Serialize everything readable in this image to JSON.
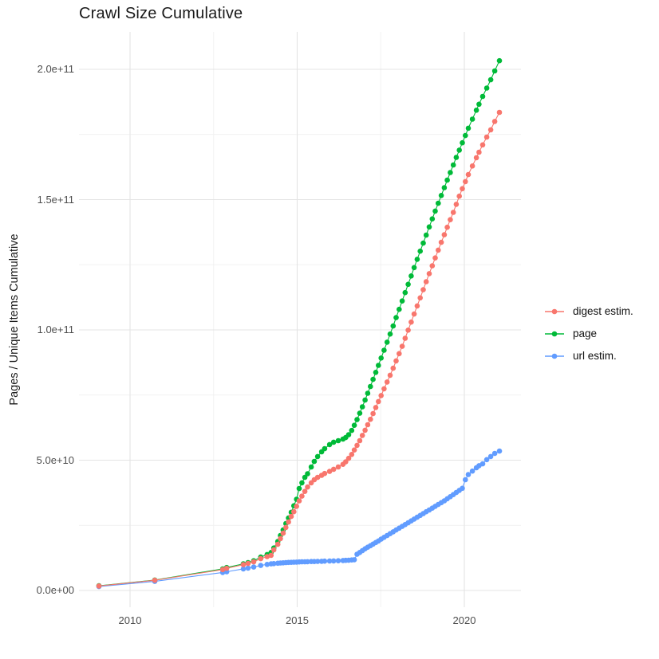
{
  "title": "Crawl Size Cumulative",
  "y_axis_title": "Pages / Unique Items Cumulative",
  "legend": {
    "items": [
      {
        "label": "digest estim.",
        "color": "#F8766D"
      },
      {
        "label": "page",
        "color": "#00BA38"
      },
      {
        "label": "url estim.",
        "color": "#619CFF"
      }
    ]
  },
  "chart_data": {
    "type": "scatter",
    "title": "Crawl Size Cumulative",
    "xlabel": "",
    "ylabel": "Pages / Unique Items Cumulative",
    "legend_position": "right",
    "grid": "on",
    "value_unit_multiplier": 1000000000.0,
    "x_range": [
      2008.4,
      2021.7
    ],
    "y_range_billions": [
      -8,
      212
    ],
    "x_ticks": [
      {
        "value": 2010,
        "label": "2010"
      },
      {
        "value": 2015,
        "label": "2015"
      },
      {
        "value": 2020,
        "label": "2020"
      }
    ],
    "x_minor_gridlines": [
      2012.5,
      2017.5
    ],
    "y_ticks": [
      {
        "value": 0,
        "label": "0.0e+00"
      },
      {
        "value": 50,
        "label": "5.0e+10"
      },
      {
        "value": 100,
        "label": "1.0e+11"
      },
      {
        "value": 150,
        "label": "1.5e+11"
      },
      {
        "value": 200,
        "label": "2.0e+11"
      }
    ],
    "y_minor_gridlines": [
      25,
      75,
      125,
      175
    ],
    "x_shared_years": [
      2009.07,
      2010.74,
      2012.77,
      2012.89,
      2013.39,
      2013.53,
      2013.7,
      2013.91,
      2014.1,
      2014.22,
      2014.3,
      2014.42,
      2014.5,
      2014.58,
      2014.66,
      2014.74,
      2014.82,
      2014.9,
      2014.98,
      2015.06,
      2015.14,
      2015.23,
      2015.31,
      2015.42,
      2015.51,
      2015.61,
      2015.73,
      2015.82,
      2015.97,
      2016.09,
      2016.23,
      2016.37,
      2016.45,
      2016.54,
      2016.63,
      2016.71,
      2016.79,
      2016.87,
      2016.95,
      2017.03,
      2017.11,
      2017.19,
      2017.27,
      2017.35,
      2017.43,
      2017.51,
      2017.6,
      2017.69,
      2017.78,
      2017.87,
      2017.96,
      2018.05,
      2018.14,
      2018.23,
      2018.32,
      2018.41,
      2018.5,
      2018.59,
      2018.68,
      2018.77,
      2018.86,
      2018.95,
      2019.04,
      2019.13,
      2019.22,
      2019.31,
      2019.4,
      2019.49,
      2019.58,
      2019.67,
      2019.76,
      2019.85,
      2019.94,
      2020.03,
      2020.12,
      2020.24,
      2020.36,
      2020.44,
      2020.55,
      2020.67,
      2020.79,
      2020.91,
      2021.05
    ],
    "series": [
      {
        "name": "digest estim.",
        "color": "#F8766D",
        "values_billions": [
          1.7,
          3.9,
          8.0,
          8.5,
          9.9,
          10.4,
          11.0,
          12.2,
          13.0,
          13.5,
          15.6,
          17.7,
          19.9,
          22.0,
          24.2,
          26.3,
          28.4,
          30.2,
          32.3,
          34.4,
          36.2,
          38.0,
          39.7,
          41.3,
          42.5,
          43.4,
          44.2,
          44.9,
          45.7,
          46.5,
          47.4,
          48.4,
          49.4,
          50.7,
          52.2,
          53.9,
          55.7,
          57.5,
          59.5,
          61.5,
          63.6,
          65.7,
          67.9,
          70.2,
          72.5,
          74.8,
          77.4,
          80.0,
          82.6,
          85.3,
          88.1,
          90.9,
          93.7,
          96.8,
          99.9,
          103.0,
          106.1,
          109.2,
          112.3,
          115.4,
          118.5,
          121.6,
          124.6,
          127.6,
          130.6,
          133.6,
          136.5,
          139.4,
          142.3,
          145.1,
          148.2,
          151.3,
          154.2,
          156.9,
          159.6,
          162.9,
          166.1,
          168.2,
          171.0,
          174.0,
          176.8,
          180.0,
          183.5
        ]
      },
      {
        "name": "page",
        "color": "#00BA38",
        "values_billions": [
          1.8,
          4.0,
          8.3,
          8.8,
          10.2,
          10.7,
          11.4,
          12.8,
          13.8,
          14.6,
          16.3,
          18.8,
          21.1,
          23.2,
          25.7,
          27.8,
          30.0,
          32.5,
          35.0,
          39.1,
          41.3,
          43.4,
          44.8,
          47.4,
          49.5,
          51.4,
          53.2,
          54.4,
          56.0,
          56.9,
          57.5,
          58.1,
          58.7,
          59.8,
          61.4,
          63.4,
          65.6,
          68.0,
          70.5,
          73.1,
          75.7,
          78.3,
          81.0,
          83.7,
          86.4,
          89.2,
          92.2,
          95.3,
          98.4,
          101.5,
          104.7,
          107.9,
          111.1,
          114.3,
          117.5,
          120.7,
          123.9,
          127.1,
          130.2,
          133.3,
          136.4,
          139.5,
          142.6,
          145.6,
          148.6,
          151.6,
          154.6,
          157.5,
          160.4,
          163.3,
          166.2,
          169.0,
          171.8,
          174.6,
          177.4,
          180.9,
          184.3,
          186.6,
          189.6,
          192.8,
          196.0,
          199.4,
          203.3
        ]
      },
      {
        "name": "url estim.",
        "color": "#619CFF",
        "values_billions": [
          1.5,
          3.5,
          6.9,
          7.2,
          8.3,
          8.6,
          9.0,
          9.6,
          10.0,
          10.2,
          10.3,
          10.45,
          10.55,
          10.6,
          10.7,
          10.75,
          10.8,
          10.85,
          10.9,
          10.95,
          11.0,
          11.0,
          11.05,
          11.1,
          11.1,
          11.15,
          11.2,
          11.25,
          11.3,
          11.35,
          11.4,
          11.5,
          11.55,
          11.6,
          11.7,
          11.8,
          13.9,
          14.6,
          15.3,
          16.0,
          16.6,
          17.2,
          17.8,
          18.4,
          19.0,
          19.7,
          20.4,
          21.1,
          21.8,
          22.5,
          23.2,
          23.9,
          24.6,
          25.3,
          26.0,
          26.7,
          27.4,
          28.1,
          28.8,
          29.5,
          30.2,
          30.9,
          31.6,
          32.3,
          33.0,
          33.7,
          34.4,
          35.2,
          36.0,
          36.8,
          37.6,
          38.4,
          39.2,
          42.5,
          44.5,
          45.8,
          47.1,
          47.9,
          48.6,
          50.2,
          51.4,
          52.6,
          53.5
        ]
      }
    ]
  }
}
